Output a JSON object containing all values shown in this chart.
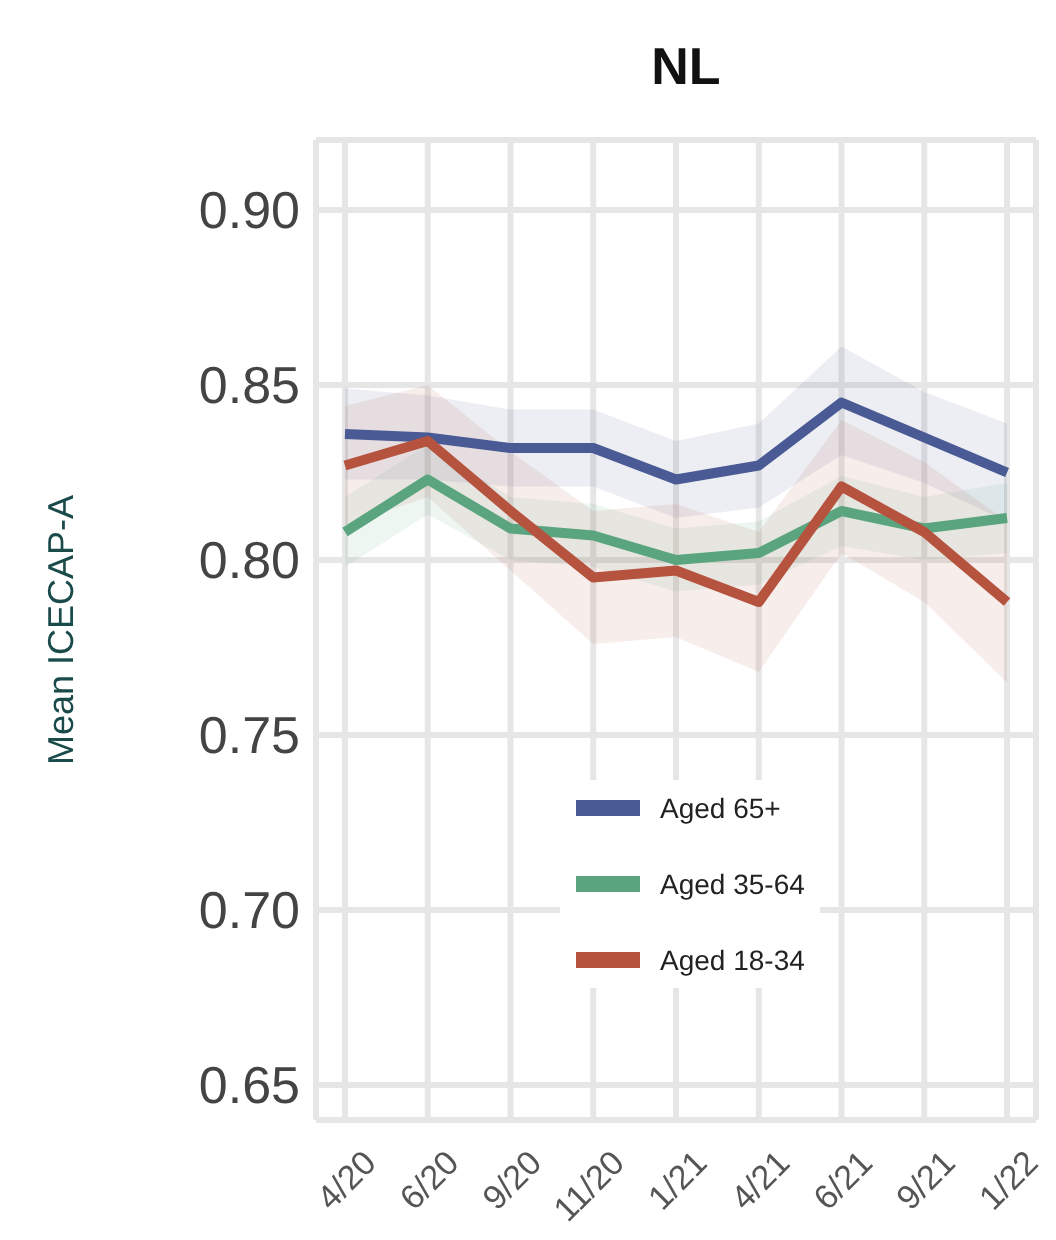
{
  "chart_data": {
    "type": "line",
    "title": "NL",
    "ylabel": "Mean ICECAP-A",
    "categories": [
      "4/20",
      "6/20",
      "9/20",
      "11/20",
      "1/21",
      "4/21",
      "6/21",
      "9/21",
      "1/22"
    ],
    "series": [
      {
        "name": "Aged 65+",
        "color": "#4a5a94",
        "values": [
          0.836,
          0.835,
          0.832,
          0.832,
          0.823,
          0.827,
          0.845,
          0.835,
          0.825
        ],
        "lower": [
          0.823,
          0.823,
          0.821,
          0.821,
          0.812,
          0.815,
          0.83,
          0.822,
          0.811
        ],
        "upper": [
          0.849,
          0.847,
          0.843,
          0.843,
          0.834,
          0.839,
          0.861,
          0.848,
          0.839
        ]
      },
      {
        "name": "Aged 35-64",
        "color": "#5aa57f",
        "values": [
          0.808,
          0.823,
          0.809,
          0.807,
          0.8,
          0.802,
          0.814,
          0.809,
          0.812
        ],
        "lower": [
          0.798,
          0.813,
          0.8,
          0.798,
          0.791,
          0.793,
          0.804,
          0.8,
          0.802
        ],
        "upper": [
          0.818,
          0.833,
          0.818,
          0.816,
          0.809,
          0.811,
          0.824,
          0.818,
          0.822
        ]
      },
      {
        "name": "Aged 18-34",
        "color": "#b5533f",
        "values": [
          0.827,
          0.834,
          0.814,
          0.795,
          0.797,
          0.788,
          0.821,
          0.808,
          0.788
        ],
        "lower": [
          0.81,
          0.818,
          0.797,
          0.776,
          0.778,
          0.768,
          0.802,
          0.788,
          0.765
        ],
        "upper": [
          0.844,
          0.85,
          0.831,
          0.814,
          0.816,
          0.808,
          0.84,
          0.828,
          0.811
        ]
      }
    ],
    "ylim": [
      0.64,
      0.92
    ],
    "yticks": [
      {
        "value": 0.65,
        "label": "0.65"
      },
      {
        "value": 0.7,
        "label": "0.70"
      },
      {
        "value": 0.75,
        "label": "0.75"
      },
      {
        "value": 0.8,
        "label": "0.80"
      },
      {
        "value": 0.85,
        "label": "0.85"
      },
      {
        "value": 0.9,
        "label": "0.90"
      }
    ],
    "grid": true,
    "legend": "bottom right",
    "marker": "none",
    "line_style": "solid"
  }
}
